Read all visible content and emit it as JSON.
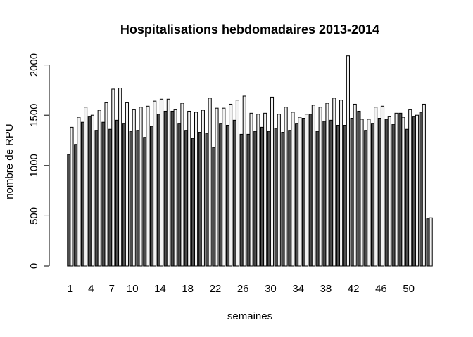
{
  "chart_data": {
    "type": "bar",
    "title": "Hospitalisations hebdomadaires 2013-2014",
    "xlabel": "semaines",
    "ylabel": "nombre de RPU",
    "ylim": [
      0,
      2100
    ],
    "yticks": [
      0,
      500,
      1000,
      1500,
      2000
    ],
    "xtick_labels": [
      "1",
      "4",
      "7",
      "10",
      "14",
      "18",
      "22",
      "26",
      "30",
      "34",
      "38",
      "42",
      "46",
      "50"
    ],
    "xtick_positions": [
      1,
      4,
      7,
      10,
      14,
      18,
      22,
      26,
      30,
      34,
      38,
      42,
      46,
      50
    ],
    "categories": [
      "1",
      "2",
      "3",
      "4",
      "5",
      "6",
      "7",
      "8",
      "9",
      "10",
      "11",
      "12",
      "13",
      "14",
      "15",
      "16",
      "17",
      "18",
      "19",
      "20",
      "21",
      "22",
      "23",
      "24",
      "25",
      "26",
      "27",
      "28",
      "29",
      "30",
      "31",
      "32",
      "33",
      "34",
      "35",
      "36",
      "37",
      "38",
      "39",
      "40",
      "41",
      "42",
      "43",
      "44",
      "45",
      "46",
      "47",
      "48",
      "49",
      "50",
      "51",
      "52",
      "53"
    ],
    "series": [
      {
        "color": "#4d4d4d",
        "values": [
          1110,
          1210,
          1430,
          1490,
          1350,
          1430,
          1360,
          1450,
          1420,
          1340,
          1350,
          1280,
          1390,
          1510,
          1540,
          1540,
          1420,
          1350,
          1270,
          1330,
          1320,
          1180,
          1420,
          1400,
          1450,
          1310,
          1310,
          1340,
          1380,
          1340,
          1370,
          1330,
          1350,
          1420,
          1470,
          1510,
          1340,
          1440,
          1450,
          1400,
          1400,
          1470,
          1540,
          1350,
          1420,
          1470,
          1460,
          1410,
          1520,
          1360,
          1490,
          1530,
          470
        ]
      },
      {
        "color": "#f2f2f2",
        "values": [
          1380,
          1480,
          1580,
          1500,
          1550,
          1630,
          1760,
          1770,
          1630,
          1560,
          1580,
          1590,
          1640,
          1660,
          1660,
          1560,
          1620,
          1540,
          1530,
          1550,
          1670,
          1570,
          1570,
          1610,
          1650,
          1690,
          1520,
          1510,
          1520,
          1680,
          1510,
          1580,
          1530,
          1480,
          1510,
          1600,
          1580,
          1620,
          1670,
          1650,
          2090,
          1610,
          1460,
          1460,
          1580,
          1590,
          1490,
          1520,
          1480,
          1560,
          1500,
          1610,
          480
        ]
      }
    ]
  }
}
